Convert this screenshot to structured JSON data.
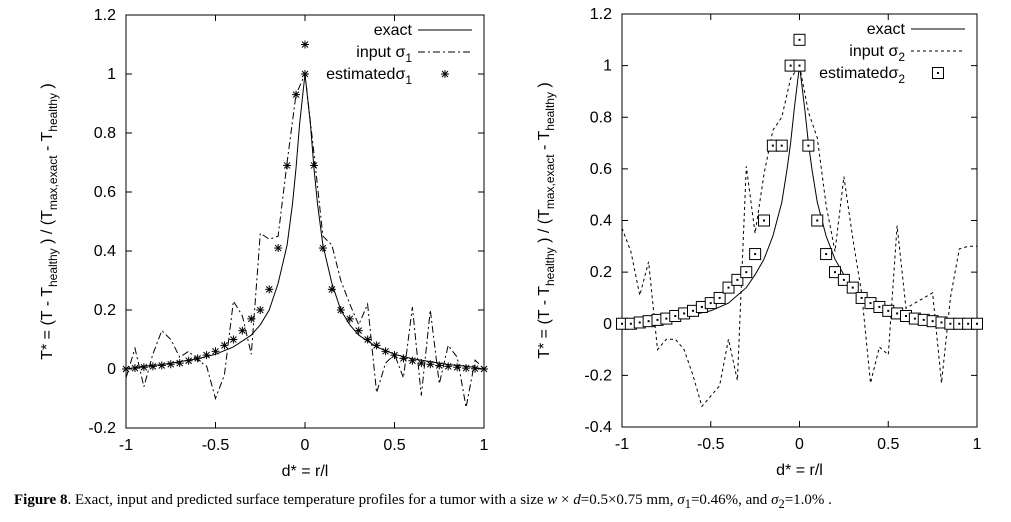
{
  "chart_data": [
    {
      "type": "line",
      "ylabel_parts": [
        "T* = (T - T",
        "healthy",
        ") / (T",
        "max,exact",
        "- T",
        "healthy",
        ")"
      ],
      "xlabel": "d* = r/l",
      "xlim": [
        -1,
        1
      ],
      "ylim": [
        -0.2,
        1.2
      ],
      "xticks": [
        -1,
        -0.5,
        0,
        0.5,
        1
      ],
      "xtick_labels": [
        "-1",
        "-0.5",
        "0",
        "0.5",
        "1"
      ],
      "yticks": [
        -0.2,
        0,
        0.2,
        0.4,
        0.6,
        0.8,
        1,
        1.2
      ],
      "ytick_labels": [
        "-0.2",
        "0",
        "0.2",
        "0.4",
        "0.6",
        "0.8",
        "1",
        "1.2"
      ],
      "legend_position": "top-right",
      "series": [
        {
          "name": "exact",
          "label_text": "exact",
          "style": "solid",
          "x": [
            -1,
            -0.9,
            -0.8,
            -0.7,
            -0.6,
            -0.5,
            -0.4,
            -0.3,
            -0.25,
            -0.2,
            -0.15,
            -0.1,
            -0.07,
            -0.05,
            -0.03,
            0,
            0.03,
            0.05,
            0.07,
            0.1,
            0.15,
            0.2,
            0.25,
            0.3,
            0.4,
            0.5,
            0.6,
            0.7,
            0.8,
            0.9,
            1
          ],
          "y": [
            0.0,
            0.01,
            0.015,
            0.025,
            0.035,
            0.05,
            0.075,
            0.115,
            0.15,
            0.2,
            0.29,
            0.42,
            0.56,
            0.68,
            0.83,
            1.0,
            0.83,
            0.68,
            0.56,
            0.42,
            0.29,
            0.2,
            0.15,
            0.115,
            0.075,
            0.05,
            0.035,
            0.025,
            0.015,
            0.01,
            0.0
          ]
        },
        {
          "name": "input",
          "label_text": "input",
          "label_sub": "1",
          "style": "dashdot",
          "x": [
            -1,
            -0.95,
            -0.9,
            -0.85,
            -0.8,
            -0.75,
            -0.7,
            -0.65,
            -0.6,
            -0.55,
            -0.5,
            -0.45,
            -0.4,
            -0.35,
            -0.3,
            -0.25,
            -0.2,
            -0.15,
            -0.1,
            -0.05,
            0,
            0.05,
            0.1,
            0.15,
            0.2,
            0.25,
            0.3,
            0.35,
            0.4,
            0.45,
            0.5,
            0.55,
            0.6,
            0.65,
            0.7,
            0.75,
            0.8,
            0.85,
            0.9,
            0.95,
            1
          ],
          "y": [
            -0.03,
            0.07,
            -0.06,
            0.05,
            0.13,
            0.1,
            0.04,
            0.06,
            0.03,
            0.01,
            -0.1,
            -0.02,
            0.23,
            0.18,
            0.05,
            0.46,
            0.44,
            0.45,
            0.7,
            0.93,
            1.0,
            0.73,
            0.45,
            0.42,
            0.3,
            0.22,
            0.15,
            0.22,
            -0.08,
            0.02,
            0.05,
            -0.03,
            0.21,
            -0.09,
            0.2,
            -0.05,
            0.08,
            0.04,
            -0.13,
            0.03,
            0.0
          ]
        },
        {
          "name": "estimated",
          "label_text": "estimated",
          "label_sub": "1",
          "style": "asterisk",
          "x": [
            -1,
            -0.95,
            -0.9,
            -0.85,
            -0.8,
            -0.75,
            -0.7,
            -0.65,
            -0.6,
            -0.55,
            -0.5,
            -0.45,
            -0.4,
            -0.35,
            -0.3,
            -0.25,
            -0.2,
            -0.15,
            -0.1,
            -0.05,
            0,
            0.05,
            0.1,
            0.15,
            0.2,
            0.25,
            0.3,
            0.35,
            0.4,
            0.45,
            0.5,
            0.55,
            0.6,
            0.65,
            0.7,
            0.75,
            0.8,
            0.85,
            0.9,
            0.95,
            1,
            0
          ],
          "y": [
            0.0,
            0.003,
            0.006,
            0.009,
            0.012,
            0.016,
            0.02,
            0.028,
            0.036,
            0.047,
            0.06,
            0.08,
            0.1,
            0.13,
            0.17,
            0.2,
            0.27,
            0.41,
            0.69,
            0.93,
            1.0,
            0.69,
            0.41,
            0.27,
            0.2,
            0.17,
            0.13,
            0.1,
            0.08,
            0.06,
            0.047,
            0.036,
            0.028,
            0.02,
            0.016,
            0.012,
            0.009,
            0.006,
            0.003,
            0.001,
            0.0,
            1.1
          ]
        }
      ]
    },
    {
      "type": "line",
      "ylabel_parts": [
        "T* = (T - T",
        "healthy",
        ") / (T",
        "max,exact",
        "- T",
        "healthy",
        ")"
      ],
      "xlabel": "d* = r/l",
      "xlim": [
        -1,
        1
      ],
      "ylim": [
        -0.4,
        1.2
      ],
      "xticks": [
        -1,
        -0.5,
        0,
        0.5,
        1
      ],
      "xtick_labels": [
        "-1",
        "-0.5",
        "0",
        "0.5",
        "1"
      ],
      "yticks": [
        -0.4,
        -0.2,
        0,
        0.2,
        0.4,
        0.6,
        0.8,
        1,
        1.2
      ],
      "ytick_labels": [
        "-0.4",
        "-0.2",
        "0",
        "0.2",
        "0.4",
        "0.6",
        "0.8",
        "1",
        "1.2"
      ],
      "legend_position": "top-right",
      "series": [
        {
          "name": "exact",
          "label_text": "exact",
          "style": "solid",
          "x": [
            -1,
            -0.9,
            -0.8,
            -0.7,
            -0.6,
            -0.5,
            -0.4,
            -0.3,
            -0.25,
            -0.2,
            -0.15,
            -0.1,
            -0.07,
            -0.05,
            -0.03,
            0,
            0.03,
            0.05,
            0.07,
            0.1,
            0.15,
            0.2,
            0.25,
            0.3,
            0.4,
            0.5,
            0.6,
            0.7,
            0.8,
            0.9,
            1
          ],
          "y": [
            0.0,
            0.005,
            0.01,
            0.02,
            0.035,
            0.05,
            0.08,
            0.14,
            0.19,
            0.25,
            0.34,
            0.47,
            0.6,
            0.7,
            0.83,
            1.0,
            0.83,
            0.7,
            0.6,
            0.47,
            0.34,
            0.25,
            0.19,
            0.14,
            0.08,
            0.05,
            0.035,
            0.02,
            0.01,
            0.005,
            0.0
          ]
        },
        {
          "name": "input",
          "label_text": "input",
          "label_sub": "2",
          "style": "dashed",
          "x": [
            -1,
            -0.95,
            -0.9,
            -0.85,
            -0.8,
            -0.75,
            -0.7,
            -0.65,
            -0.6,
            -0.55,
            -0.5,
            -0.45,
            -0.4,
            -0.35,
            -0.3,
            -0.25,
            -0.2,
            -0.15,
            -0.1,
            -0.05,
            0,
            0.05,
            0.1,
            0.15,
            0.2,
            0.25,
            0.3,
            0.35,
            0.4,
            0.45,
            0.5,
            0.55,
            0.6,
            0.65,
            0.7,
            0.75,
            0.8,
            0.85,
            0.9,
            0.95,
            1
          ],
          "y": [
            0.37,
            0.28,
            0.11,
            0.24,
            -0.1,
            -0.06,
            -0.06,
            -0.1,
            -0.2,
            -0.32,
            -0.28,
            -0.24,
            -0.06,
            -0.22,
            0.61,
            0.35,
            0.58,
            0.75,
            0.8,
            0.95,
            1.0,
            0.82,
            0.72,
            0.46,
            0.28,
            0.57,
            0.33,
            0.12,
            -0.23,
            -0.09,
            -0.12,
            0.38,
            0.06,
            0.08,
            0.1,
            0.12,
            -0.23,
            0.1,
            0.29,
            0.3,
            0.3
          ]
        },
        {
          "name": "estimated",
          "label_text": "estimated",
          "label_sub": "2",
          "style": "square",
          "x": [
            -1,
            -0.95,
            -0.9,
            -0.85,
            -0.8,
            -0.75,
            -0.7,
            -0.65,
            -0.6,
            -0.55,
            -0.5,
            -0.45,
            -0.4,
            -0.35,
            -0.3,
            -0.25,
            -0.2,
            -0.15,
            -0.1,
            -0.05,
            0,
            0.05,
            0.1,
            0.15,
            0.2,
            0.25,
            0.3,
            0.35,
            0.4,
            0.45,
            0.5,
            0.55,
            0.6,
            0.65,
            0.7,
            0.75,
            0.8,
            0.85,
            0.9,
            0.95,
            1,
            0
          ],
          "y": [
            0.0,
            0.0,
            0.005,
            0.01,
            0.015,
            0.02,
            0.03,
            0.04,
            0.05,
            0.065,
            0.08,
            0.1,
            0.14,
            0.17,
            0.2,
            0.27,
            0.4,
            0.69,
            0.69,
            1.0,
            1.0,
            0.69,
            0.4,
            0.27,
            0.2,
            0.17,
            0.14,
            0.1,
            0.08,
            0.065,
            0.05,
            0.04,
            0.03,
            0.02,
            0.015,
            0.01,
            0.005,
            0.0,
            0.0,
            0.0,
            0.0,
            1.1
          ]
        }
      ]
    }
  ],
  "caption": {
    "label": "Figure 8",
    "pre": ". Exact, input and predicted surface temperature profiles for a tumor with a size ",
    "w": "w",
    "times1": " × ",
    "d": "d",
    "dims": "=0.5×0.75 mm, ",
    "sigma": "σ",
    "s1sub": "1",
    "s1val": "=0.46%, and ",
    "s2sub": "2",
    "s2val": "=1.0% ."
  }
}
